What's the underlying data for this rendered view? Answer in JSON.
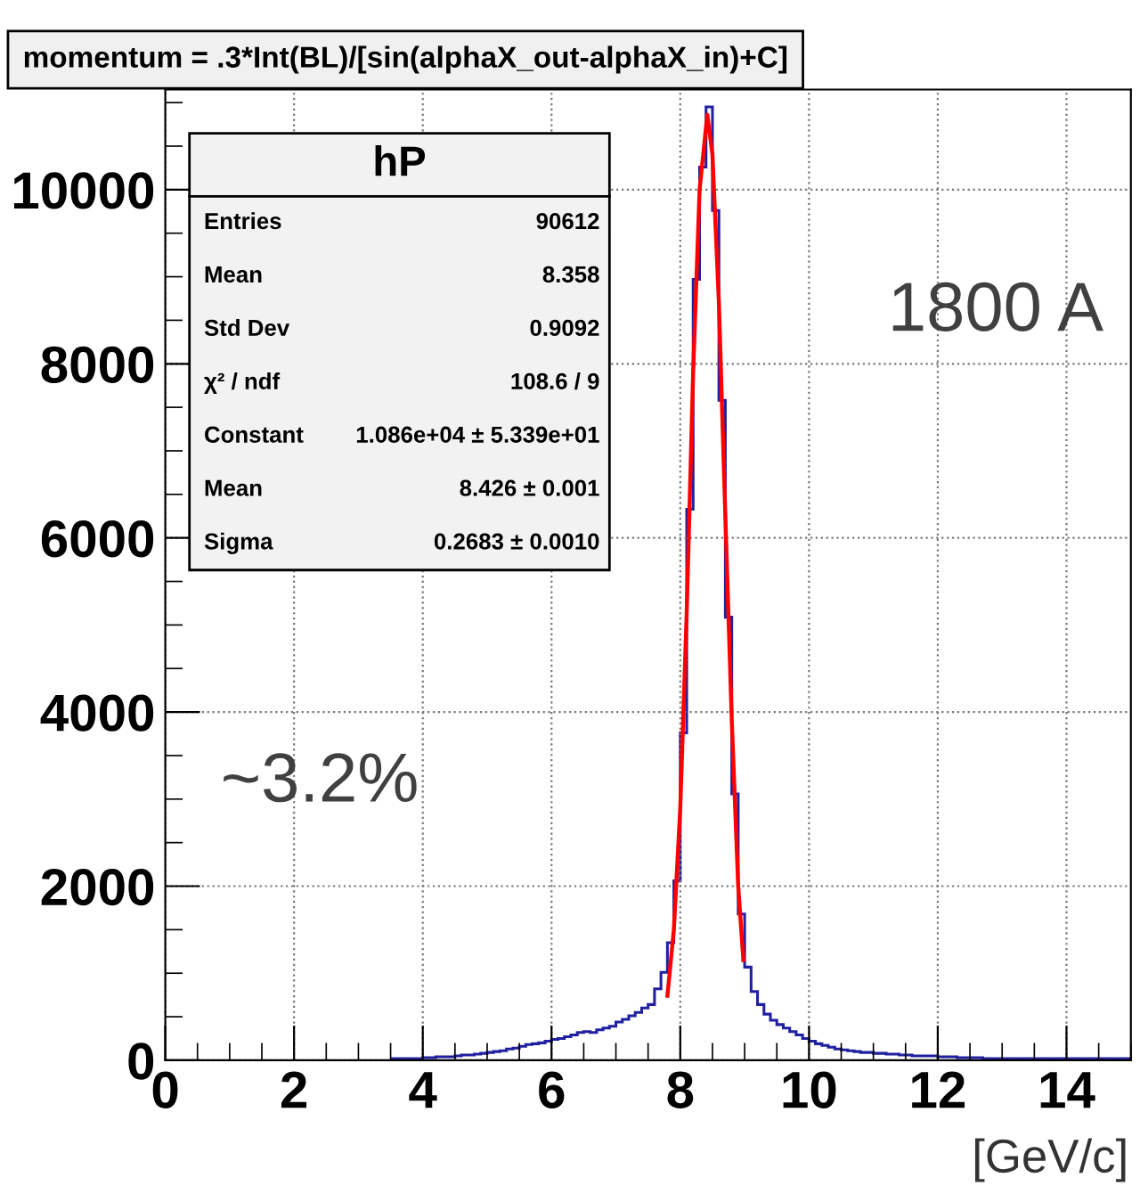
{
  "chart_data": {
    "type": "histogram",
    "title": "momentum = .3*Int(BL)/[sin(alphaX_out-alphaX_in)+C]",
    "xlabel": "[GeV/c]",
    "annotations": [
      "1800 A",
      "~3.2%",
      "hP",
      "Entries",
      "90612",
      "Mean",
      "8.358",
      "Std Dev",
      "0.9092",
      "χ² / ndf",
      "108.6 / 9",
      "Constant",
      "1.086e+04 ± 5.339e+01",
      "Mean",
      "8.426 ± 0.001",
      "Sigma",
      "0.2683 ± 0.0010"
    ],
    "bins": [
      3.5,
      3.6,
      3.7,
      3.8,
      3.9,
      4.0,
      4.1,
      4.2,
      4.3,
      4.4,
      4.5,
      4.6,
      4.7,
      4.8,
      4.9,
      5.0,
      5.1,
      5.2,
      5.3,
      5.4,
      5.5,
      5.6,
      5.7,
      5.8,
      5.9,
      6.0,
      6.1,
      6.2,
      6.3,
      6.4,
      6.5,
      6.6,
      6.7,
      6.8,
      6.9,
      7.0,
      7.1,
      7.2,
      7.3,
      7.4,
      7.5,
      7.6,
      7.7,
      7.8,
      7.9,
      8.0,
      8.1,
      8.2,
      8.3,
      8.4,
      8.5,
      8.6,
      8.7,
      8.8,
      8.9,
      9.0,
      9.1,
      9.2,
      9.3,
      9.4,
      9.5,
      9.6,
      9.7,
      9.8,
      9.9,
      10.0,
      10.1,
      10.2,
      10.3,
      10.4,
      10.5,
      10.6,
      10.7,
      10.8,
      10.9,
      11.0,
      11.1,
      11.2,
      11.3,
      11.4,
      11.5,
      11.6,
      11.7,
      11.8,
      11.9,
      12.0,
      12.1,
      12.2,
      12.3,
      12.4,
      12.5,
      12.6,
      12.7,
      12.8,
      12.9,
      13.0,
      13.1,
      13.2,
      13.3,
      13.4,
      13.5,
      13.6,
      13.7,
      13.8,
      13.9,
      14.0,
      14.1,
      14.2,
      14.3,
      14.4,
      14.5,
      14.6,
      14.7,
      14.8,
      14.9,
      15.0
    ],
    "values": [
      20,
      20,
      20,
      20,
      20,
      30,
      30,
      40,
      40,
      40,
      50,
      60,
      60,
      70,
      80,
      90,
      100,
      110,
      130,
      140,
      160,
      180,
      190,
      200,
      220,
      240,
      250,
      270,
      290,
      320,
      330,
      320,
      350,
      370,
      390,
      440,
      470,
      510,
      550,
      600,
      640,
      820,
      1010,
      1350,
      2060,
      3760,
      6330,
      8970,
      10260,
      10950,
      9760,
      7580,
      5090,
      3060,
      1680,
      1070,
      790,
      640,
      530,
      460,
      410,
      370,
      330,
      290,
      250,
      220,
      190,
      170,
      150,
      130,
      120,
      110,
      100,
      90,
      90,
      80,
      80,
      70,
      70,
      60,
      60,
      50,
      50,
      50,
      50,
      40,
      40,
      40,
      30,
      30,
      30,
      30,
      20,
      20,
      20,
      20,
      20,
      20,
      20,
      20,
      20,
      20,
      20,
      20,
      20,
      20,
      20,
      20,
      20,
      20,
      20,
      20,
      20,
      20,
      20
    ],
    "color": "#2020a0",
    "series": [
      {
        "type": "line",
        "color": "#ff0000",
        "x": [
          7.8,
          7.9,
          8.0,
          8.1,
          8.2,
          8.3,
          8.42,
          8.5,
          8.6,
          8.7,
          8.8,
          8.9,
          8.98
        ],
        "values": [
          740,
          1500,
          2900,
          5150,
          7900,
          10000,
          10860,
          10400,
          8700,
          6250,
          3900,
          2000,
          1150
        ]
      }
    ],
    "xlim": [
      0,
      15
    ],
    "xticks": [
      0,
      2,
      4,
      6,
      8,
      10,
      12,
      14
    ],
    "ylim": [
      0,
      11150
    ],
    "yticks": [
      0,
      2000,
      4000,
      6000,
      8000,
      10000
    ],
    "grid": true
  }
}
